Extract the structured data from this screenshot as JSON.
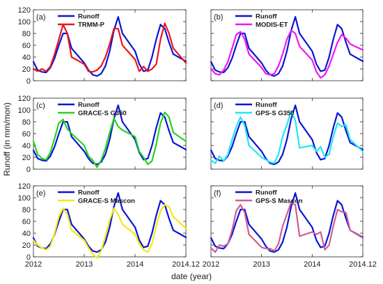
{
  "figure": {
    "ylabel": "Runoff (in mm/mon)",
    "xlabel": "date (year)",
    "colors": {
      "runoff": "#0a14d6",
      "trmm": "#e8141e",
      "modis": "#f018f0",
      "grace_g350": "#21d61f",
      "gps_g350": "#22e6f2",
      "grace_mascon": "#f2ea14",
      "gps_mascon": "#cf5f93"
    }
  },
  "chart_data": [
    {
      "panel": "(a)",
      "type": "line",
      "x": [
        "2012.0",
        "2012.1",
        "2012.2",
        "2012.3",
        "2012.4",
        "2012.5",
        "2012.6",
        "2012.7",
        "2012.8",
        "2012.9",
        "2013.0",
        "2013.1",
        "2013.2",
        "2013.3",
        "2013.4",
        "2013.5",
        "2013.6",
        "2013.7",
        "2013.8",
        "2013.9",
        "2014.0",
        "2014.1",
        "2014.2",
        "2014.3",
        "2014.4",
        "2014.5",
        "2014.6",
        "2014.7",
        "2014.8",
        "2014.9",
        "2014.12"
      ],
      "x_ticks": [
        "2012",
        "2013",
        "2014",
        "2014.12"
      ],
      "ylim": [
        0,
        120
      ],
      "y_ticks": [
        "0",
        "20",
        "40",
        "60",
        "80",
        "100",
        "120"
      ],
      "series": [
        {
          "name": "Runoff",
          "values": [
            32,
            18,
            15,
            14,
            22,
            38,
            60,
            80,
            80,
            55,
            30,
            18,
            10,
            8,
            12,
            25,
            50,
            85,
            108,
            80,
            50,
            28,
            16,
            18,
            40,
            70,
            95,
            88,
            65,
            45,
            33
          ]
        },
        {
          "name": "TRMM-P",
          "values": [
            20,
            16,
            20,
            16,
            24,
            45,
            70,
            95,
            80,
            40,
            28,
            16,
            15,
            18,
            25,
            40,
            62,
            88,
            88,
            60,
            36,
            16,
            24,
            16,
            20,
            28,
            70,
            97,
            80,
            55,
            30
          ]
        }
      ]
    },
    {
      "panel": "(b)",
      "type": "line",
      "x": [
        "2012.0",
        "2012.1",
        "2012.2",
        "2012.3",
        "2012.4",
        "2012.5",
        "2012.6",
        "2012.7",
        "2012.8",
        "2012.9",
        "2013.0",
        "2013.1",
        "2013.2",
        "2013.3",
        "2013.4",
        "2013.5",
        "2013.6",
        "2013.7",
        "2013.8",
        "2013.9",
        "2014.0",
        "2014.1",
        "2014.2",
        "2014.3",
        "2014.4",
        "2014.5",
        "2014.6",
        "2014.7",
        "2014.8",
        "2014.9",
        "2014.12"
      ],
      "x_ticks": [
        "2012",
        "2013",
        "2014",
        "2014.12"
      ],
      "ylim": [
        0,
        120
      ],
      "y_ticks": [
        "0",
        "20",
        "40",
        "60",
        "80",
        "100",
        "120"
      ],
      "series": [
        {
          "name": "Runoff",
          "values": [
            32,
            18,
            15,
            14,
            22,
            38,
            60,
            80,
            80,
            55,
            30,
            18,
            10,
            8,
            12,
            25,
            50,
            85,
            108,
            80,
            50,
            28,
            16,
            18,
            40,
            70,
            95,
            88,
            65,
            45,
            33
          ]
        },
        {
          "name": "MODIS-ET",
          "values": [
            20,
            12,
            10,
            18,
            32,
            55,
            78,
            83,
            70,
            45,
            22,
            12,
            10,
            12,
            25,
            45,
            70,
            85,
            80,
            58,
            35,
            15,
            5,
            10,
            25,
            45,
            65,
            78,
            72,
            62,
            52
          ]
        }
      ]
    },
    {
      "panel": "(c)",
      "type": "line",
      "x": [
        "2012.0",
        "2012.1",
        "2012.2",
        "2012.3",
        "2012.4",
        "2012.5",
        "2012.6",
        "2012.7",
        "2012.8",
        "2012.9",
        "2013.0",
        "2013.1",
        "2013.2",
        "2013.3",
        "2013.4",
        "2013.5",
        "2013.6",
        "2013.7",
        "2013.8",
        "2013.9",
        "2014.0",
        "2014.1",
        "2014.2",
        "2014.3",
        "2014.4",
        "2014.5",
        "2014.6",
        "2014.7",
        "2014.8",
        "2014.9",
        "2014.12"
      ],
      "x_ticks": [
        "2012",
        "2013",
        "2014",
        "2014.12"
      ],
      "ylim": [
        0,
        120
      ],
      "y_ticks": [
        "0",
        "20",
        "40",
        "60",
        "80",
        "100",
        "120"
      ],
      "series": [
        {
          "name": "Runoff",
          "values": [
            32,
            18,
            15,
            14,
            22,
            38,
            60,
            80,
            80,
            55,
            30,
            18,
            10,
            8,
            12,
            25,
            50,
            85,
            108,
            80,
            50,
            28,
            16,
            18,
            40,
            70,
            95,
            88,
            65,
            45,
            33
          ]
        },
        {
          "name": "GRACE-S G350",
          "values": [
            47,
            25,
            18,
            16,
            28,
            52,
            78,
            84,
            68,
            60,
            40,
            22,
            15,
            3,
            15,
            35,
            62,
            86,
            72,
            66,
            55,
            30,
            20,
            8,
            14,
            42,
            78,
            96,
            88,
            62,
            47
          ]
        }
      ]
    },
    {
      "panel": "(d)",
      "type": "line",
      "x": [
        "2012.0",
        "2012.1",
        "2012.2",
        "2012.3",
        "2012.4",
        "2012.5",
        "2012.6",
        "2012.7",
        "2012.8",
        "2012.9",
        "2013.0",
        "2013.1",
        "2013.2",
        "2013.3",
        "2013.4",
        "2013.5",
        "2013.6",
        "2013.7",
        "2013.8",
        "2013.9",
        "2014.0",
        "2014.1",
        "2014.2",
        "2014.3",
        "2014.4",
        "2014.5",
        "2014.6",
        "2014.7",
        "2014.8",
        "2014.9",
        "2014.12"
      ],
      "x_ticks": [
        "2012",
        "2013",
        "2014",
        "2014.12"
      ],
      "ylim": [
        0,
        120
      ],
      "y_ticks": [
        "0",
        "20",
        "40",
        "60",
        "80",
        "100",
        "120"
      ],
      "series": [
        {
          "name": "Runoff",
          "values": [
            32,
            18,
            15,
            14,
            22,
            38,
            60,
            80,
            80,
            55,
            30,
            18,
            10,
            8,
            12,
            25,
            50,
            85,
            108,
            80,
            50,
            28,
            16,
            18,
            40,
            70,
            95,
            88,
            65,
            45,
            33
          ]
        },
        {
          "name": "GPS-S G350",
          "values": [
            15,
            10,
            22,
            14,
            25,
            50,
            72,
            88,
            74,
            40,
            20,
            16,
            12,
            10,
            25,
            55,
            75,
            98,
            82,
            36,
            40,
            30,
            38,
            20,
            25,
            55,
            78,
            72,
            75,
            50,
            30
          ]
        }
      ]
    },
    {
      "panel": "(e)",
      "type": "line",
      "x": [
        "2012.0",
        "2012.1",
        "2012.2",
        "2012.3",
        "2012.4",
        "2012.5",
        "2012.6",
        "2012.7",
        "2012.8",
        "2012.9",
        "2013.0",
        "2013.1",
        "2013.2",
        "2013.3",
        "2013.4",
        "2013.5",
        "2013.6",
        "2013.7",
        "2013.8",
        "2013.9",
        "2014.0",
        "2014.1",
        "2014.2",
        "2014.3",
        "2014.4",
        "2014.5",
        "2014.6",
        "2014.7",
        "2014.8",
        "2014.9",
        "2014.12"
      ],
      "x_ticks": [
        "2012",
        "2013",
        "2014",
        "2014.12"
      ],
      "ylim": [
        0,
        120
      ],
      "y_ticks": [
        "0",
        "20",
        "40",
        "60",
        "80",
        "100",
        "120"
      ],
      "series": [
        {
          "name": "Runoff",
          "values": [
            32,
            18,
            15,
            14,
            22,
            38,
            60,
            80,
            80,
            55,
            30,
            18,
            10,
            8,
            12,
            25,
            50,
            85,
            108,
            80,
            50,
            28,
            16,
            18,
            40,
            70,
            95,
            88,
            65,
            45,
            33
          ]
        },
        {
          "name": "GRACE-S Mascon",
          "values": [
            28,
            20,
            15,
            12,
            18,
            40,
            68,
            82,
            72,
            45,
            28,
            15,
            5,
            -2,
            10,
            35,
            62,
            82,
            72,
            55,
            38,
            22,
            12,
            8,
            22,
            52,
            78,
            88,
            85,
            68,
            48
          ]
        }
      ]
    },
    {
      "panel": "(f)",
      "type": "line",
      "x": [
        "2012.0",
        "2012.1",
        "2012.2",
        "2012.3",
        "2012.4",
        "2012.5",
        "2012.6",
        "2012.7",
        "2012.8",
        "2012.9",
        "2013.0",
        "2013.1",
        "2013.2",
        "2013.3",
        "2013.4",
        "2013.5",
        "2013.6",
        "2013.7",
        "2013.8",
        "2013.9",
        "2014.0",
        "2014.1",
        "2014.2",
        "2014.3",
        "2014.4",
        "2014.5",
        "2014.6",
        "2014.7",
        "2014.8",
        "2014.9",
        "2014.12"
      ],
      "x_ticks": [
        "2012",
        "2013",
        "2014",
        "2014.12"
      ],
      "ylim": [
        0,
        120
      ],
      "y_ticks": [
        "0",
        "20",
        "40",
        "60",
        "80",
        "100",
        "120"
      ],
      "series": [
        {
          "name": "Runoff",
          "values": [
            32,
            18,
            15,
            14,
            22,
            38,
            60,
            80,
            80,
            55,
            30,
            18,
            10,
            8,
            12,
            25,
            50,
            85,
            108,
            80,
            50,
            28,
            16,
            18,
            40,
            70,
            95,
            88,
            65,
            45,
            33
          ]
        },
        {
          "name": "GPS-S Mascon",
          "values": [
            15,
            8,
            20,
            18,
            22,
            45,
            78,
            88,
            75,
            38,
            16,
            14,
            14,
            10,
            22,
            52,
            72,
            92,
            88,
            35,
            42,
            38,
            42,
            12,
            20,
            52,
            80,
            76,
            75,
            45,
            32
          ]
        }
      ]
    }
  ]
}
